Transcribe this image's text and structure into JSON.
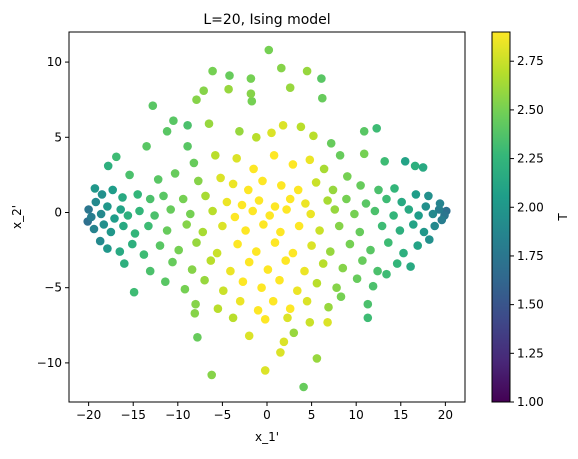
{
  "chart_data": {
    "type": "scatter",
    "title": "L=20, Ising model",
    "xlabel": "x_1'",
    "ylabel": "x_2'",
    "xlim": [
      -22.2,
      22.2
    ],
    "ylim": [
      -12.6,
      12.0
    ],
    "xticks": [
      -20,
      -15,
      -10,
      -5,
      0,
      5,
      10,
      15,
      20
    ],
    "yticks": [
      -10,
      -5,
      0,
      5,
      10
    ],
    "colorbar": {
      "label": "T",
      "range": [
        1.0,
        2.9
      ],
      "ticks": [
        "1.00",
        "1.25",
        "1.50",
        "1.75",
        "2.00",
        "2.25",
        "2.50",
        "2.75"
      ],
      "colormap": "viridis",
      "colors": [
        "#440154",
        "#482878",
        "#3e4989",
        "#31688e",
        "#26828e",
        "#1f9e89",
        "#35b779",
        "#6ece58",
        "#b5de2b",
        "#fde725"
      ]
    },
    "grid": false,
    "series": [
      {
        "points": [
          [
            0.2,
            10.8,
            2.5
          ],
          [
            1.6,
            9.6,
            2.55
          ],
          [
            -6.1,
            9.4,
            2.5
          ],
          [
            -4.2,
            9.1,
            2.45
          ],
          [
            4.5,
            9.4,
            2.6
          ],
          [
            -1.8,
            8.9,
            2.5
          ],
          [
            2.6,
            8.3,
            2.6
          ],
          [
            6.1,
            8.9,
            2.4
          ],
          [
            -4.3,
            8.2,
            2.6
          ],
          [
            -7.1,
            8.1,
            2.55
          ],
          [
            -1.8,
            7.9,
            2.55
          ],
          [
            -1.7,
            7.4,
            2.5
          ],
          [
            -7.9,
            7.5,
            2.55
          ],
          [
            -12.8,
            7.1,
            2.4
          ],
          [
            6.2,
            7.6,
            2.45
          ],
          [
            -10.5,
            6.1,
            2.4
          ],
          [
            -8.9,
            5.8,
            2.35
          ],
          [
            12.3,
            5.6,
            2.3
          ],
          [
            10.9,
            5.4,
            2.4
          ],
          [
            -11.2,
            5.4,
            2.4
          ],
          [
            -13.5,
            4.4,
            2.4
          ],
          [
            -6.5,
            5.9,
            2.6
          ],
          [
            -3.1,
            5.4,
            2.6
          ],
          [
            -1.2,
            5.0,
            2.7
          ],
          [
            0.5,
            5.3,
            2.8
          ],
          [
            1.8,
            5.8,
            2.8
          ],
          [
            3.8,
            5.7,
            2.7
          ],
          [
            5.2,
            5.1,
            2.7
          ],
          [
            7.2,
            4.6,
            2.45
          ],
          [
            8.2,
            3.8,
            2.45
          ],
          [
            10.9,
            3.9,
            2.5
          ],
          [
            -8.9,
            4.4,
            2.4
          ],
          [
            -8.2,
            3.3,
            2.45
          ],
          [
            -5.8,
            3.8,
            2.7
          ],
          [
            -3.4,
            3.6,
            2.8
          ],
          [
            -1.5,
            2.9,
            2.9
          ],
          [
            0.8,
            3.8,
            2.9
          ],
          [
            2.9,
            3.2,
            2.9
          ],
          [
            4.8,
            3.5,
            2.85
          ],
          [
            6.4,
            2.9,
            2.65
          ],
          [
            9.0,
            2.4,
            2.5
          ],
          [
            13.2,
            3.4,
            2.3
          ],
          [
            16.6,
            3.1,
            2.2
          ],
          [
            15.5,
            3.4,
            2.1
          ],
          [
            17.5,
            3.0,
            2.15
          ],
          [
            -17.8,
            3.1,
            2.2
          ],
          [
            -16.9,
            3.7,
            2.3
          ],
          [
            -15.4,
            2.5,
            2.35
          ],
          [
            -12.2,
            2.2,
            2.4
          ],
          [
            -10.3,
            2.6,
            2.45
          ],
          [
            -7.7,
            2.1,
            2.55
          ],
          [
            -5.2,
            2.3,
            2.8
          ],
          [
            -3.8,
            1.9,
            2.85
          ],
          [
            -2.1,
            1.5,
            2.9
          ],
          [
            -0.5,
            2.1,
            2.9
          ],
          [
            1.6,
            1.8,
            2.9
          ],
          [
            3.5,
            1.5,
            2.9
          ],
          [
            5.5,
            2.0,
            2.75
          ],
          [
            7.4,
            1.5,
            2.6
          ],
          [
            10.5,
            1.8,
            2.45
          ],
          [
            12.5,
            1.5,
            2.35
          ],
          [
            14.3,
            1.6,
            2.25
          ],
          [
            -19.3,
            1.6,
            2.0
          ],
          [
            -18.5,
            1.2,
            1.95
          ],
          [
            -17.3,
            1.5,
            2.05
          ],
          [
            -16.2,
            1.0,
            2.15
          ],
          [
            -14.5,
            1.2,
            2.25
          ],
          [
            -13.1,
            0.9,
            2.35
          ],
          [
            -11.6,
            1.1,
            2.4
          ],
          [
            -9.4,
            0.9,
            2.5
          ],
          [
            -6.9,
            1.1,
            2.65
          ],
          [
            -4.5,
            0.7,
            2.85
          ],
          [
            -2.8,
            0.5,
            2.9
          ],
          [
            -0.9,
            0.8,
            2.9
          ],
          [
            0.9,
            0.4,
            2.9
          ],
          [
            2.6,
            0.9,
            2.9
          ],
          [
            4.3,
            0.6,
            2.85
          ],
          [
            6.8,
            0.8,
            2.65
          ],
          [
            8.9,
            0.9,
            2.5
          ],
          [
            11.1,
            0.6,
            2.4
          ],
          [
            13.4,
            0.9,
            2.3
          ],
          [
            15.1,
            0.7,
            2.15
          ],
          [
            16.7,
            1.2,
            2.05
          ],
          [
            18.1,
            1.1,
            1.95
          ],
          [
            19.4,
            0.6,
            1.85
          ],
          [
            -20.0,
            0.2,
            1.75
          ],
          [
            -19.7,
            -0.3,
            1.8
          ],
          [
            -19.2,
            0.7,
            1.9
          ],
          [
            -18.6,
            -0.1,
            1.9
          ],
          [
            -17.9,
            0.4,
            2.0
          ],
          [
            -17.1,
            -0.4,
            2.05
          ],
          [
            -16.4,
            0.2,
            2.1
          ],
          [
            -15.6,
            -0.2,
            2.2
          ],
          [
            -14.3,
            0.1,
            2.25
          ],
          [
            -12.6,
            -0.2,
            2.35
          ],
          [
            -10.8,
            0.2,
            2.45
          ],
          [
            -8.6,
            -0.1,
            2.5
          ],
          [
            -6.1,
            0.1,
            2.7
          ],
          [
            -3.6,
            -0.3,
            2.9
          ],
          [
            -1.6,
            0.1,
            2.9
          ],
          [
            0.3,
            -0.2,
            2.9
          ],
          [
            2.2,
            0.2,
            2.9
          ],
          [
            4.9,
            -0.1,
            2.85
          ],
          [
            7.6,
            0.2,
            2.6
          ],
          [
            9.8,
            -0.1,
            2.5
          ],
          [
            12.1,
            0.1,
            2.35
          ],
          [
            14.2,
            -0.2,
            2.25
          ],
          [
            15.9,
            0.2,
            2.15
          ],
          [
            17.0,
            -0.2,
            2.05
          ],
          [
            17.8,
            0.4,
            1.95
          ],
          [
            18.6,
            -0.1,
            1.9
          ],
          [
            19.3,
            0.2,
            1.8
          ],
          [
            19.9,
            -0.2,
            1.75
          ],
          [
            20.1,
            0.1,
            1.7
          ],
          [
            -20.1,
            -0.6,
            1.7
          ],
          [
            -19.4,
            -1.1,
            1.85
          ],
          [
            -18.3,
            -0.8,
            1.95
          ],
          [
            -17.5,
            -1.3,
            2.0
          ],
          [
            -16.1,
            -0.9,
            2.15
          ],
          [
            -14.8,
            -1.4,
            2.25
          ],
          [
            -13.3,
            -0.9,
            2.3
          ],
          [
            -11.2,
            -1.2,
            2.45
          ],
          [
            -9.0,
            -0.8,
            2.55
          ],
          [
            -7.2,
            -1.3,
            2.65
          ],
          [
            -5.0,
            -0.9,
            2.8
          ],
          [
            -2.4,
            -1.2,
            2.9
          ],
          [
            -0.4,
            -0.8,
            2.9
          ],
          [
            1.5,
            -1.3,
            2.9
          ],
          [
            3.6,
            -0.9,
            2.9
          ],
          [
            5.9,
            -1.2,
            2.75
          ],
          [
            8.1,
            -0.9,
            2.55
          ],
          [
            10.4,
            -1.3,
            2.45
          ],
          [
            12.9,
            -0.9,
            2.3
          ],
          [
            14.9,
            -1.2,
            2.2
          ],
          [
            16.4,
            -0.8,
            2.1
          ],
          [
            17.6,
            -1.3,
            2.0
          ],
          [
            18.8,
            -0.9,
            1.9
          ],
          [
            19.6,
            -0.5,
            1.8
          ],
          [
            -18.7,
            -1.9,
            1.9
          ],
          [
            -17.9,
            -2.4,
            2.0
          ],
          [
            -16.5,
            -2.6,
            2.15
          ],
          [
            -15.1,
            -2.1,
            2.2
          ],
          [
            -13.8,
            -2.8,
            2.3
          ],
          [
            -12.0,
            -2.2,
            2.4
          ],
          [
            -9.9,
            -2.5,
            2.5
          ],
          [
            -7.9,
            -2.0,
            2.6
          ],
          [
            -5.6,
            -2.7,
            2.75
          ],
          [
            -3.3,
            -2.1,
            2.9
          ],
          [
            -1.2,
            -2.6,
            2.9
          ],
          [
            0.9,
            -2.0,
            2.9
          ],
          [
            2.9,
            -2.7,
            2.9
          ],
          [
            5.0,
            -2.2,
            2.8
          ],
          [
            7.1,
            -2.6,
            2.6
          ],
          [
            9.3,
            -2.1,
            2.5
          ],
          [
            11.6,
            -2.5,
            2.4
          ],
          [
            13.6,
            -2.0,
            2.3
          ],
          [
            15.3,
            -2.7,
            2.2
          ],
          [
            16.9,
            -2.2,
            2.1
          ],
          [
            18.2,
            -1.8,
            1.95
          ],
          [
            -16.0,
            -3.4,
            2.2
          ],
          [
            -13.1,
            -3.9,
            2.35
          ],
          [
            -10.6,
            -3.3,
            2.45
          ],
          [
            -8.4,
            -3.8,
            2.55
          ],
          [
            -6.3,
            -3.2,
            2.7
          ],
          [
            -4.1,
            -3.9,
            2.85
          ],
          [
            -2.0,
            -3.3,
            2.9
          ],
          [
            0.1,
            -3.8,
            2.9
          ],
          [
            2.1,
            -3.2,
            2.9
          ],
          [
            4.2,
            -3.9,
            2.85
          ],
          [
            6.3,
            -3.4,
            2.7
          ],
          [
            8.5,
            -3.7,
            2.55
          ],
          [
            10.7,
            -3.2,
            2.45
          ],
          [
            12.4,
            -3.9,
            2.35
          ],
          [
            14.6,
            -3.4,
            2.25
          ],
          [
            16.1,
            -3.6,
            2.15
          ],
          [
            -11.4,
            -4.6,
            2.4
          ],
          [
            -9.2,
            -5.1,
            2.5
          ],
          [
            -7.0,
            -4.5,
            2.6
          ],
          [
            -4.9,
            -5.2,
            2.75
          ],
          [
            -2.7,
            -4.6,
            2.9
          ],
          [
            -0.6,
            -5.0,
            2.9
          ],
          [
            1.4,
            -4.5,
            2.9
          ],
          [
            3.4,
            -5.2,
            2.85
          ],
          [
            5.6,
            -4.7,
            2.7
          ],
          [
            7.8,
            -5.0,
            2.55
          ],
          [
            10.1,
            -4.4,
            2.45
          ],
          [
            11.9,
            -4.9,
            2.35
          ],
          [
            -14.9,
            -5.3,
            2.3
          ],
          [
            13.4,
            -4.1,
            2.3
          ],
          [
            -8.0,
            -6.1,
            2.55
          ],
          [
            -5.5,
            -6.4,
            2.7
          ],
          [
            -3.0,
            -5.9,
            2.85
          ],
          [
            -1.0,
            -6.5,
            2.9
          ],
          [
            0.7,
            -5.9,
            2.9
          ],
          [
            2.6,
            -6.4,
            2.9
          ],
          [
            4.5,
            -5.9,
            2.8
          ],
          [
            6.9,
            -6.3,
            2.6
          ],
          [
            8.3,
            -5.6,
            2.5
          ],
          [
            11.3,
            -6.1,
            2.35
          ],
          [
            -8.1,
            -6.7,
            2.55
          ],
          [
            -3.8,
            -7.0,
            2.7
          ],
          [
            -0.2,
            -7.1,
            2.9
          ],
          [
            2.3,
            -7.0,
            2.8
          ],
          [
            4.8,
            -7.3,
            2.75
          ],
          [
            6.8,
            -7.3,
            2.8
          ],
          [
            11.3,
            -7.0,
            2.3
          ],
          [
            -7.8,
            -8.3,
            2.45
          ],
          [
            -2.0,
            -8.2,
            2.8
          ],
          [
            3.0,
            -8.0,
            2.6
          ],
          [
            1.9,
            -8.6,
            2.8
          ],
          [
            1.5,
            -9.3,
            2.8
          ],
          [
            5.6,
            -9.7,
            2.6
          ],
          [
            -0.2,
            -10.5,
            2.8
          ],
          [
            -6.2,
            -10.8,
            2.55
          ],
          [
            4.1,
            -11.6,
            2.45
          ]
        ]
      }
    ]
  }
}
